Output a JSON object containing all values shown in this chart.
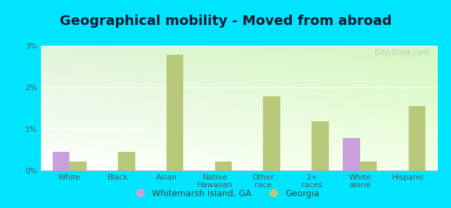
{
  "title": "Geographical mobility - Moved from abroad",
  "categories": [
    "White",
    "Black",
    "Asian",
    "Native\nHawaiian",
    "Other\nrace",
    "2+\nraces",
    "White\nalone",
    "Hispanic"
  ],
  "whitemarsh_values": [
    0.45,
    0.0,
    0.0,
    0.0,
    0.0,
    0.0,
    0.78,
    0.0
  ],
  "georgia_values": [
    0.22,
    0.45,
    2.78,
    0.22,
    1.78,
    1.18,
    0.22,
    1.55
  ],
  "whitemarsh_color": "#c9a0dc",
  "georgia_color": "#b8c87a",
  "bg_color_topleft": "#e8f5ea",
  "bg_color_topright": "#d0e8d8",
  "bg_color_bottomleft": "#ffffff",
  "bg_color_bottomright": "#c8e8d0",
  "outer_bg": "#00e5ff",
  "ylim": [
    0,
    3.0
  ],
  "yticks": [
    0,
    1,
    2,
    3
  ],
  "ytick_labels": [
    "0%",
    "1%",
    "2%",
    "3%"
  ],
  "bar_width": 0.35,
  "legend_whitemarsh": "Whitemarsh Island, GA",
  "legend_georgia": "Georgia",
  "title_fontsize": 14,
  "tick_fontsize": 8,
  "legend_fontsize": 9,
  "watermark": "City-Data.com"
}
